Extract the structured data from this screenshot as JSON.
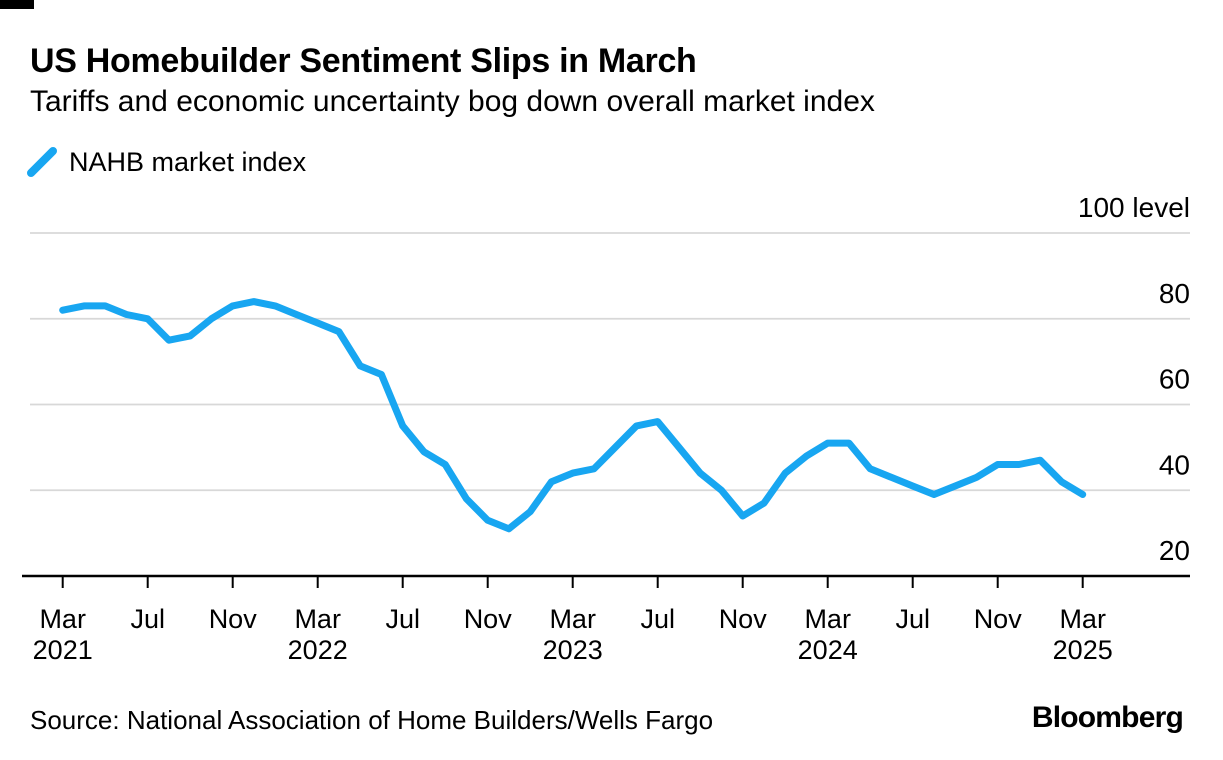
{
  "header": {
    "title": "US Homebuilder Sentiment Slips in March",
    "subtitle": "Tariffs and economic uncertainty bog down overall market index"
  },
  "legend": {
    "label": "NAHB market index",
    "color": "#18a6f1"
  },
  "footer": {
    "source": "Source: National Association of Home Builders/Wells Fargo",
    "brand": "Bloomberg"
  },
  "colors": {
    "line": "#18a6f1",
    "grid": "#d8d8d8",
    "axis": "#000000",
    "text": "#000000",
    "background": "#ffffff"
  },
  "chart_data": {
    "type": "line",
    "title": "US Homebuilder Sentiment Slips in March",
    "subtitle": "Tariffs and economic uncertainty bog down overall market index",
    "unit_label": "100 level",
    "grid": "horizontal",
    "legend_position": "top-left",
    "ylim": [
      20,
      100
    ],
    "y_ticks": [
      100,
      80,
      60,
      40,
      20
    ],
    "y_gridline_values": [
      100,
      80,
      60,
      40
    ],
    "y_axis_side": "right",
    "x_ticks": [
      {
        "month": "Mar",
        "year": "2021"
      },
      {
        "month": "Jul"
      },
      {
        "month": "Nov"
      },
      {
        "month": "Mar",
        "year": "2022"
      },
      {
        "month": "Jul"
      },
      {
        "month": "Nov"
      },
      {
        "month": "Mar",
        "year": "2023"
      },
      {
        "month": "Jul"
      },
      {
        "month": "Nov"
      },
      {
        "month": "Mar",
        "year": "2024"
      },
      {
        "month": "Jul"
      },
      {
        "month": "Nov"
      },
      {
        "month": "Mar",
        "year": "2025"
      }
    ],
    "series": [
      {
        "name": "NAHB market index",
        "color": "#18a6f1",
        "x": [
          "Mar 2021",
          "Apr 2021",
          "May 2021",
          "Jun 2021",
          "Jul 2021",
          "Aug 2021",
          "Sep 2021",
          "Oct 2021",
          "Nov 2021",
          "Dec 2021",
          "Jan 2022",
          "Feb 2022",
          "Mar 2022",
          "Apr 2022",
          "May 2022",
          "Jun 2022",
          "Jul 2022",
          "Aug 2022",
          "Sep 2022",
          "Oct 2022",
          "Nov 2022",
          "Dec 2022",
          "Jan 2023",
          "Feb 2023",
          "Mar 2023",
          "Apr 2023",
          "May 2023",
          "Jun 2023",
          "Jul 2023",
          "Aug 2023",
          "Sep 2023",
          "Oct 2023",
          "Nov 2023",
          "Dec 2023",
          "Jan 2024",
          "Feb 2024",
          "Mar 2024",
          "Apr 2024",
          "May 2024",
          "Jun 2024",
          "Jul 2024",
          "Aug 2024",
          "Sep 2024",
          "Oct 2024",
          "Nov 2024",
          "Dec 2024",
          "Jan 2025",
          "Feb 2025",
          "Mar 2025"
        ],
        "values": [
          82,
          83,
          83,
          81,
          80,
          75,
          76,
          80,
          83,
          84,
          83,
          81,
          79,
          77,
          69,
          67,
          55,
          49,
          46,
          38,
          33,
          31,
          35,
          42,
          44,
          45,
          50,
          55,
          56,
          50,
          44,
          40,
          34,
          37,
          44,
          48,
          51,
          51,
          45,
          43,
          41,
          39,
          41,
          43,
          46,
          46,
          47,
          42,
          39
        ]
      }
    ]
  }
}
